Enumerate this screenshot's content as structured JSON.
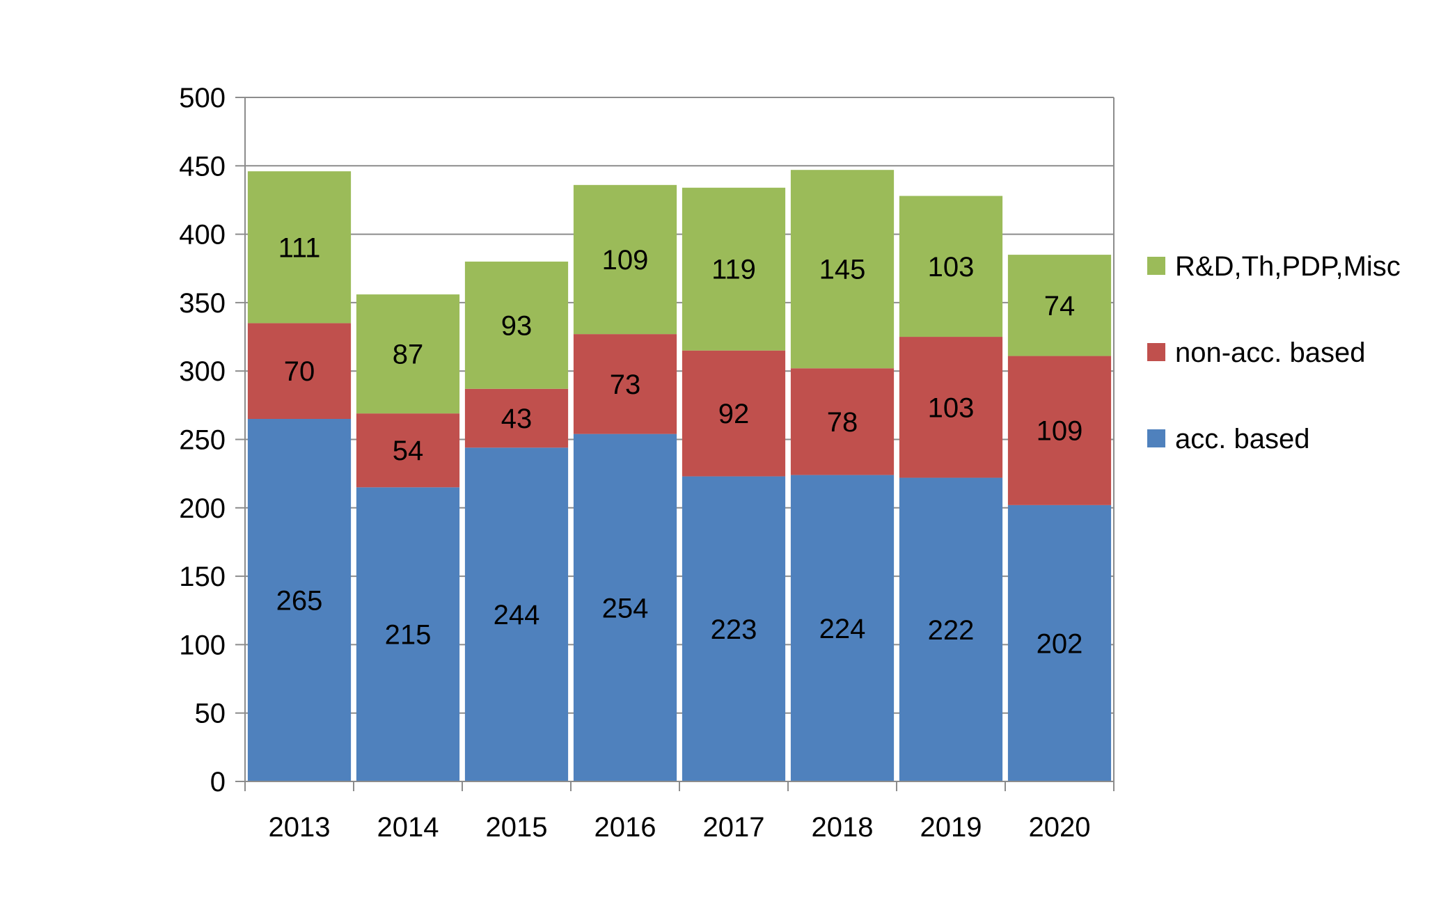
{
  "chart_data": {
    "type": "bar",
    "stacked": true,
    "categories": [
      "2013",
      "2014",
      "2015",
      "2016",
      "2017",
      "2018",
      "2019",
      "2020"
    ],
    "series": [
      {
        "name": "acc. based",
        "color": "#4f81bd",
        "values": [
          265,
          215,
          244,
          254,
          223,
          224,
          222,
          202
        ]
      },
      {
        "name": "non-acc. based",
        "color": "#c0504d",
        "values": [
          70,
          54,
          43,
          73,
          92,
          78,
          103,
          109
        ]
      },
      {
        "name": "R&D,Th,PDP,Misc",
        "color": "#9bbb59",
        "values": [
          111,
          87,
          93,
          109,
          119,
          145,
          103,
          74
        ]
      }
    ],
    "ylim": [
      0,
      500
    ],
    "yticks": [
      "0",
      "50",
      "100",
      "150",
      "200",
      "250",
      "300",
      "350",
      "400",
      "450",
      "500"
    ],
    "grid": true,
    "legend": "right",
    "title": "",
    "xlabel": "",
    "ylabel": ""
  }
}
